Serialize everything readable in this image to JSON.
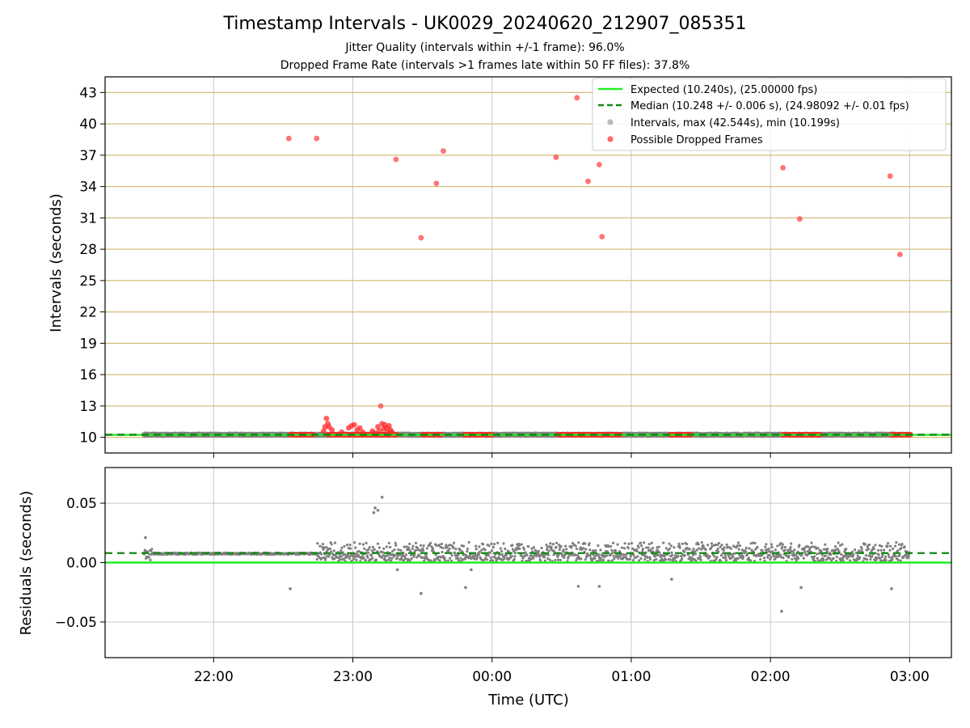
{
  "title": "Timestamp Intervals - UK0029_20240620_212907_085351",
  "subtitle_1": "Jitter Quality (intervals within +/-1 frame): 96.0%",
  "subtitle_2": "Dropped Frame Rate (intervals >1 frames late within 50 FF files): 37.8%",
  "colors": {
    "expected": "#22ee22",
    "median": "#118811",
    "intervals": "#808080",
    "dropped": "#ff2a2a",
    "hgrid_top": "#d8bd7a",
    "grid": "#c8c8c8"
  },
  "chart_data": [
    {
      "type": "scatter",
      "panel": "top",
      "xlabel": "",
      "ylabel": "Intervals (seconds)",
      "x_unit": "hours since 00:00 UTC (negative = previous day)",
      "xlim": [
        -2.78,
        3.3
      ],
      "ylim": [
        8.5,
        44.5
      ],
      "x_ticks": [
        -2,
        -1,
        0,
        1,
        2,
        3
      ],
      "x_tick_labels": [
        "22:00",
        "23:00",
        "00:00",
        "01:00",
        "02:00",
        "03:00"
      ],
      "y_ticks": [
        10,
        13,
        16,
        19,
        22,
        25,
        28,
        31,
        34,
        37,
        40,
        43
      ],
      "y_tick_labels": [
        "10",
        "13",
        "16",
        "19",
        "22",
        "25",
        "28",
        "31",
        "34",
        "37",
        "40",
        "43"
      ],
      "grid": true,
      "legend_position": "top-right",
      "legend": [
        "Expected (10.240s), (25.00000 fps)",
        "Median (10.248 +/- 0.006 s), (24.98092 +/- 0.01 fps)",
        "Intervals, max (42.544s), min (10.199s)",
        "Possible Dropped Frames"
      ],
      "expected_value": 10.24,
      "median_value": 10.248,
      "interval_band": {
        "x_start": -2.5,
        "x_end": 3.0,
        "value": 10.25
      },
      "dropped_clusters": [
        {
          "x_start": -1.45,
          "x_end": -1.28
        },
        {
          "x_start": -1.18,
          "x_end": -0.68
        },
        {
          "x_start": -0.5,
          "x_end": -0.36
        },
        {
          "x_start": -0.2,
          "x_end": -0.0
        },
        {
          "x_start": 0.47,
          "x_end": 0.93
        },
        {
          "x_start": 1.28,
          "x_end": 1.43
        },
        {
          "x_start": 2.09,
          "x_end": 2.36
        },
        {
          "x_start": 2.87,
          "x_end": 3.01
        }
      ],
      "dropped_noise": [
        {
          "x": -1.21,
          "y": 10.6
        },
        {
          "x": -1.2,
          "y": 11.0
        },
        {
          "x": -1.19,
          "y": 11.8
        },
        {
          "x": -1.18,
          "y": 11.3
        },
        {
          "x": -1.17,
          "y": 11.0
        },
        {
          "x": -1.15,
          "y": 10.7
        },
        {
          "x": -1.08,
          "y": 10.5
        },
        {
          "x": -1.03,
          "y": 10.9
        },
        {
          "x": -1.01,
          "y": 11.1
        },
        {
          "x": -0.99,
          "y": 11.2
        },
        {
          "x": -0.97,
          "y": 10.7
        },
        {
          "x": -0.95,
          "y": 10.9
        },
        {
          "x": -0.93,
          "y": 10.5
        },
        {
          "x": -0.86,
          "y": 10.6
        },
        {
          "x": -0.84,
          "y": 10.4
        },
        {
          "x": -0.82,
          "y": 11.0
        },
        {
          "x": -0.81,
          "y": 10.6
        },
        {
          "x": -0.79,
          "y": 11.3
        },
        {
          "x": -0.78,
          "y": 10.8
        },
        {
          "x": -0.77,
          "y": 11.2
        },
        {
          "x": -0.76,
          "y": 10.9
        },
        {
          "x": -0.75,
          "y": 10.5
        },
        {
          "x": -0.74,
          "y": 11.1
        },
        {
          "x": -0.73,
          "y": 10.7
        },
        {
          "x": -0.72,
          "y": 10.5
        }
      ],
      "dropped_outliers": [
        {
          "x": -1.46,
          "y": 38.6
        },
        {
          "x": -1.26,
          "y": 38.6
        },
        {
          "x": -0.8,
          "y": 13.0
        },
        {
          "x": -0.69,
          "y": 36.6
        },
        {
          "x": -0.51,
          "y": 29.1
        },
        {
          "x": -0.4,
          "y": 34.3
        },
        {
          "x": -0.35,
          "y": 37.4
        },
        {
          "x": 0.46,
          "y": 36.8
        },
        {
          "x": 0.61,
          "y": 42.5
        },
        {
          "x": 0.69,
          "y": 34.5
        },
        {
          "x": 0.77,
          "y": 36.1
        },
        {
          "x": 0.79,
          "y": 29.2
        },
        {
          "x": 2.09,
          "y": 35.8
        },
        {
          "x": 2.21,
          "y": 30.9
        },
        {
          "x": 2.86,
          "y": 35.0
        },
        {
          "x": 2.93,
          "y": 27.5
        }
      ]
    },
    {
      "type": "scatter",
      "panel": "bottom",
      "xlabel": "Time (UTC)",
      "ylabel": "Residuals (seconds)",
      "x_unit": "hours since 00:00 UTC (negative = previous day)",
      "xlim": [
        -2.78,
        3.3
      ],
      "ylim": [
        -0.08,
        0.08
      ],
      "x_ticks": [
        -2,
        -1,
        0,
        1,
        2,
        3
      ],
      "x_tick_labels": [
        "22:00",
        "23:00",
        "00:00",
        "01:00",
        "02:00",
        "03:00"
      ],
      "y_ticks": [
        -0.05,
        0.0,
        0.05
      ],
      "y_tick_labels": [
        "−0.05",
        "0.00",
        "0.05"
      ],
      "grid": true,
      "expected_residual": 0.0,
      "median_residual": 0.008,
      "residual_band": {
        "x_start": -2.5,
        "x_end": 3.0
      },
      "residual_outliers": [
        {
          "x": -2.49,
          "y": 0.021
        },
        {
          "x": -1.45,
          "y": -0.022
        },
        {
          "x": -0.85,
          "y": 0.042
        },
        {
          "x": -0.84,
          "y": 0.046
        },
        {
          "x": -0.82,
          "y": 0.044
        },
        {
          "x": -0.79,
          "y": 0.055
        },
        {
          "x": -0.68,
          "y": -0.006
        },
        {
          "x": -0.51,
          "y": -0.026
        },
        {
          "x": -0.19,
          "y": -0.021
        },
        {
          "x": -0.15,
          "y": -0.006
        },
        {
          "x": 0.62,
          "y": -0.02
        },
        {
          "x": 0.77,
          "y": -0.02
        },
        {
          "x": 1.29,
          "y": -0.014
        },
        {
          "x": 2.08,
          "y": -0.041
        },
        {
          "x": 2.22,
          "y": -0.021
        },
        {
          "x": 2.87,
          "y": -0.022
        }
      ]
    }
  ]
}
